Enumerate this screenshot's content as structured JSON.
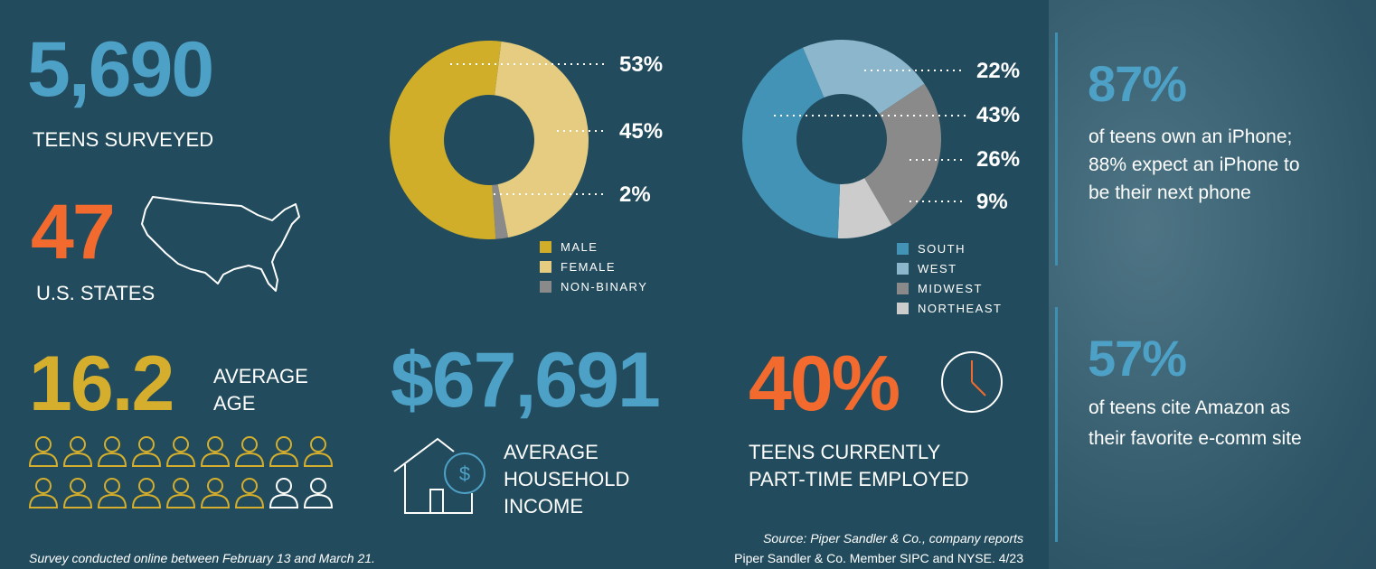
{
  "surveyed": {
    "value": "5,690",
    "label": "TEENS SURVEYED"
  },
  "states": {
    "value": "47",
    "label": "U.S. STATES"
  },
  "age": {
    "value": "16.2",
    "label_line1": "AVERAGE",
    "label_line2": "AGE"
  },
  "income": {
    "value": "$67,691",
    "label_line1": "AVERAGE",
    "label_line2": "HOUSEHOLD",
    "label_line3": "INCOME"
  },
  "employed": {
    "value": "40%",
    "label_line1": "TEENS CURRENTLY",
    "label_line2": "PART-TIME EMPLOYED"
  },
  "iphone": {
    "value": "87%",
    "text_line1": "of teens own an iPhone;",
    "text_line2": "88% expect an iPhone to",
    "text_line3": "be their next phone"
  },
  "amazon": {
    "value": "57%",
    "text_line1": "of teens cite Amazon as",
    "text_line2": "their favorite e-comm site"
  },
  "footer": {
    "survey_note": "Survey conducted online between February 13 and March 21.",
    "source": "Source: Piper Sandler & Co., company reports",
    "member": "Piper Sandler & Co. Member SIPC and NYSE. 4/23"
  },
  "colors": {
    "background": "#224c5d",
    "blue": "#4ea1c6",
    "orange": "#f26a2e",
    "gold": "#d4ae2c"
  },
  "icons": {
    "people_filled": 16,
    "people_total": 18
  },
  "chart_data": [
    {
      "type": "pie",
      "categories": [
        "MALE",
        "FEMALE",
        "NON-BINARY"
      ],
      "values": [
        53,
        45,
        2
      ],
      "labels": [
        "53%",
        "45%",
        "2%"
      ],
      "colors": [
        "#d1ae2a",
        "#e6cc80",
        "#8a8a8a"
      ],
      "legend": "bottom"
    },
    {
      "type": "pie",
      "categories": [
        "SOUTH",
        "WEST",
        "MIDWEST",
        "NORTHEAST"
      ],
      "values": [
        43,
        22,
        26,
        9
      ],
      "labels": [
        "43%",
        "22%",
        "26%",
        "9%"
      ],
      "colors": [
        "#4393b6",
        "#8cb6cc",
        "#8a8a8a",
        "#cccccc"
      ],
      "legend": "bottom"
    }
  ]
}
